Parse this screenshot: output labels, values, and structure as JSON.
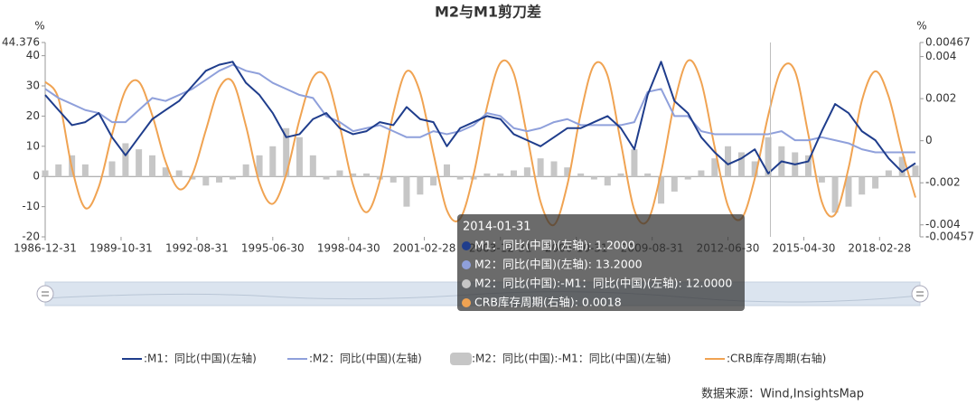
{
  "chart_data": {
    "type": "line",
    "title": "M2与M1剪刀差",
    "y_unit": "%",
    "y2_unit": "%",
    "x": [
      "1986-12-31",
      "1987-06-30",
      "1987-12-31",
      "1988-06-30",
      "1988-12-31",
      "1989-06-30",
      "1989-12-31",
      "1990-06-30",
      "1990-12-31",
      "1991-06-30",
      "1991-12-31",
      "1992-06-30",
      "1992-12-31",
      "1993-06-30",
      "1993-12-31",
      "1994-06-30",
      "1994-12-31",
      "1995-06-30",
      "1995-12-31",
      "1996-06-30",
      "1996-12-31",
      "1997-06-30",
      "1997-12-31",
      "1998-06-30",
      "1998-12-31",
      "1999-06-30",
      "1999-12-31",
      "2000-06-30",
      "2000-12-31",
      "2001-06-30",
      "2001-12-31",
      "2002-06-30",
      "2002-12-31",
      "2003-06-30",
      "2003-12-31",
      "2004-06-30",
      "2004-12-31",
      "2005-06-30",
      "2005-12-31",
      "2006-06-30",
      "2006-12-31",
      "2007-06-30",
      "2007-12-31",
      "2008-06-30",
      "2008-12-31",
      "2009-06-30",
      "2009-12-31",
      "2010-06-30",
      "2010-12-31",
      "2011-06-30",
      "2011-12-31",
      "2012-06-30",
      "2012-12-31",
      "2013-06-30",
      "2013-12-31",
      "2014-06-30",
      "2014-12-31",
      "2015-06-30",
      "2015-12-31",
      "2016-06-30",
      "2016-12-31",
      "2017-06-30",
      "2017-12-31",
      "2018-06-30",
      "2018-12-31",
      "2019-06-30"
    ],
    "xlim": [
      "1986-12-31",
      "2019-08-31"
    ],
    "xticks": [
      "1986-12-31",
      "1989-10-31",
      "1992-08-31",
      "1995-06-30",
      "1998-04-30",
      "2001-02-28",
      "2003-12-31",
      "2006-10-31",
      "2009-08-31",
      "2012-06-30",
      "2015-04-30",
      "2018-02-28"
    ],
    "ylim": [
      -20,
      44.376
    ],
    "yticks": [
      -20,
      -10,
      0,
      10,
      20,
      30,
      40,
      44.376
    ],
    "y2lim": [
      -0.00457,
      0.00467
    ],
    "y2ticks": [
      -0.00457,
      -0.004,
      -0.002,
      0,
      0.002,
      0.004,
      0.00467
    ],
    "series": [
      {
        "name": ":M1：同比(中国)(左轴)",
        "type": "line",
        "color": "#1f3d8c",
        "values": [
          27,
          22,
          17,
          18,
          21,
          13,
          7,
          13,
          19,
          22,
          25,
          30,
          35,
          37,
          38,
          31,
          27,
          21,
          13,
          14,
          19,
          21,
          16,
          14,
          15,
          18,
          17,
          23,
          19,
          18,
          10,
          16,
          18,
          20,
          19,
          14,
          12,
          10,
          13,
          16,
          16,
          18,
          20,
          16,
          9,
          27,
          38,
          25,
          21,
          13,
          8,
          4,
          6,
          9,
          1,
          5,
          4,
          5,
          15,
          24,
          21,
          15,
          12,
          6,
          1.5,
          4.4
        ]
      },
      {
        "name": ":M2：同比(中国)(左轴)",
        "type": "line",
        "color": "#8fa0db",
        "values": [
          29,
          26,
          24,
          22,
          21,
          18,
          18,
          22,
          26,
          25,
          27,
          29,
          32,
          35,
          37,
          35,
          34,
          31,
          29,
          27,
          26,
          20,
          18,
          15,
          16,
          17,
          15,
          13,
          13,
          15,
          14,
          15,
          17,
          21,
          20,
          16,
          15,
          16,
          18,
          19,
          17,
          17,
          17,
          17,
          18,
          28,
          29,
          20,
          20,
          15,
          14,
          14,
          14,
          14,
          14,
          15,
          12,
          12,
          13,
          12,
          11,
          9,
          8,
          8,
          8,
          8
        ]
      },
      {
        "name": ":M2：同比(中国):-M1：同比(中国)(左轴)",
        "type": "bar",
        "color": "#c6c6c6",
        "values": [
          2,
          4,
          7,
          4,
          0,
          5,
          11,
          9,
          7,
          3,
          2,
          -1,
          -3,
          -2,
          -1,
          4,
          7,
          10,
          16,
          13,
          7,
          -1,
          2,
          1,
          1,
          -1,
          -2,
          -10,
          -6,
          -3,
          4,
          -1,
          -1,
          1,
          1,
          2,
          3,
          6,
          5,
          3,
          1,
          -1,
          -3,
          1,
          9,
          1,
          -9,
          -5,
          -1,
          2,
          6,
          10,
          8,
          5,
          13,
          10,
          8,
          7,
          -2,
          -12,
          -10,
          -6,
          -4,
          2,
          6.5,
          3.6
        ]
      },
      {
        "name": ":CRB库存周期(右轴)",
        "type": "line",
        "axis": "y2",
        "smooth": true,
        "color": "#f0a352",
        "values": [
          0.0028,
          0.002,
          -0.0013,
          -0.0032,
          -0.0022,
          0.0003,
          0.0024,
          0.0028,
          0.0012,
          -0.001,
          -0.0023,
          -0.0016,
          0.0005,
          0.0025,
          0.0028,
          0.0007,
          -0.002,
          -0.003,
          -0.0016,
          0.001,
          0.003,
          0.003,
          0.0007,
          -0.0021,
          -0.0034,
          -0.0019,
          0.0013,
          0.0033,
          0.0023,
          -0.0006,
          -0.0033,
          -0.0037,
          -0.0016,
          0.0016,
          0.0037,
          0.0032,
          0.0002,
          -0.0029,
          -0.004,
          -0.0021,
          0.0013,
          0.0036,
          0.0031,
          -0.0001,
          -0.0033,
          -0.0038,
          -0.0015,
          0.0018,
          0.0038,
          0.0028,
          -0.0003,
          -0.0031,
          -0.0037,
          -0.0018,
          0.0012,
          0.0034,
          0.0033,
          0.0003,
          -0.0029,
          -0.0035,
          -0.0013,
          0.0019,
          0.0033,
          0.0021,
          -0.0005,
          -0.0027
        ]
      }
    ],
    "tooltip": {
      "title": "2014-01-31",
      "items": [
        {
          "text": "M1：同比(中国)(左轴): 1.2000",
          "color": "#1f3d8c"
        },
        {
          "text": "M2：同比(中国)(左轴): 13.2000",
          "color": "#8fa0db"
        },
        {
          "text": "M2：同比(中国):-M1：同比(中国)(左轴): 12.0000",
          "color": "#c6c6c6"
        },
        {
          "text": "CRB库存周期(右轴): 0.0018",
          "color": "#f0a352"
        }
      ]
    },
    "source": "数据来源：Wind,InsightsMap"
  }
}
